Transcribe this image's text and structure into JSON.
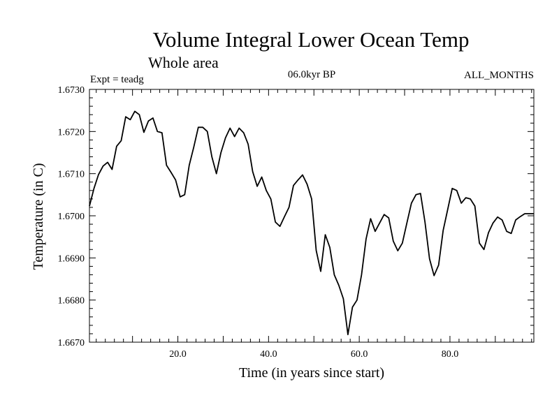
{
  "chart_data": {
    "type": "line",
    "title": "Volume Integral Lower Ocean Temp",
    "subtitle": "Whole area",
    "expt_label": "Expt = teadg",
    "period_label": "06.0kyr BP",
    "months_label": "ALL_MONTHS",
    "xlabel": "Time (in years since start)",
    "ylabel": "Temperature (in C)",
    "xlim": [
      0.5,
      98.5
    ],
    "ylim": [
      1.667,
      1.673
    ],
    "x_ticks": [
      20,
      40,
      60,
      80
    ],
    "x_tick_labels": [
      "20.0",
      "40.0",
      "60.0",
      "80.0"
    ],
    "y_ticks": [
      1.667,
      1.668,
      1.669,
      1.67,
      1.671,
      1.672,
      1.673
    ],
    "y_tick_labels": [
      "1.6670",
      "1.6680",
      "1.6690",
      "1.6700",
      "1.6710",
      "1.6720",
      "1.6730"
    ],
    "series": [
      {
        "name": "teadg",
        "color": "#000000",
        "x": [
          0.5,
          1.5,
          2.5,
          3.5,
          4.5,
          5.5,
          6.5,
          7.5,
          8.5,
          9.5,
          10.5,
          11.5,
          12.5,
          13.5,
          14.5,
          15.5,
          16.5,
          17.5,
          18.5,
          19.5,
          20.5,
          21.5,
          22.5,
          23.5,
          24.5,
          25.5,
          26.5,
          27.5,
          28.5,
          29.5,
          30.5,
          31.5,
          32.5,
          33.5,
          34.5,
          35.5,
          36.5,
          37.5,
          38.5,
          39.5,
          40.5,
          41.5,
          42.5,
          43.5,
          44.5,
          45.5,
          46.5,
          47.5,
          48.5,
          49.5,
          50.5,
          51.5,
          52.5,
          53.5,
          54.5,
          55.5,
          56.5,
          57.5,
          58.5,
          59.5,
          60.5,
          61.5,
          62.5,
          63.5,
          64.5,
          65.5,
          66.5,
          67.5,
          68.5,
          69.5,
          70.5,
          71.5,
          72.5,
          73.5,
          74.5,
          75.5,
          76.5,
          77.5,
          78.5,
          79.5,
          80.5,
          81.5,
          82.5,
          83.5,
          84.5,
          85.5,
          86.5,
          87.5,
          88.5,
          89.5,
          90.5,
          91.5,
          92.5,
          93.5,
          94.5,
          95.5,
          96.5,
          97.5,
          98.5
        ],
        "values": [
          1.67023,
          1.67065,
          1.67098,
          1.67118,
          1.67127,
          1.6711,
          1.67165,
          1.67178,
          1.67235,
          1.67228,
          1.67248,
          1.6724,
          1.67198,
          1.67225,
          1.67232,
          1.672,
          1.67197,
          1.6712,
          1.67103,
          1.67085,
          1.67045,
          1.6705,
          1.6712,
          1.67163,
          1.6721,
          1.6721,
          1.672,
          1.6714,
          1.671,
          1.6715,
          1.67185,
          1.67208,
          1.67188,
          1.67208,
          1.67197,
          1.6717,
          1.67105,
          1.6707,
          1.67092,
          1.6706,
          1.6704,
          1.66985,
          1.66975,
          1.66998,
          1.6702,
          1.67072,
          1.67085,
          1.67097,
          1.67075,
          1.6704,
          1.66918,
          1.66868,
          1.66955,
          1.66925,
          1.6686,
          1.66835,
          1.66803,
          1.66718,
          1.66783,
          1.668,
          1.6686,
          1.66945,
          1.66993,
          1.66963,
          1.66983,
          1.67003,
          1.66995,
          1.6694,
          1.66917,
          1.66935,
          1.66983,
          1.6703,
          1.6705,
          1.67053,
          1.66985,
          1.66898,
          1.66858,
          1.66883,
          1.66965,
          1.67015,
          1.67065,
          1.6706,
          1.6703,
          1.67043,
          1.6704,
          1.67023,
          1.66935,
          1.6692,
          1.6696,
          1.66983,
          1.66997,
          1.6699,
          1.66963,
          1.66958,
          1.6699,
          1.66998,
          1.67005,
          1.67005,
          1.67005
        ]
      }
    ]
  }
}
